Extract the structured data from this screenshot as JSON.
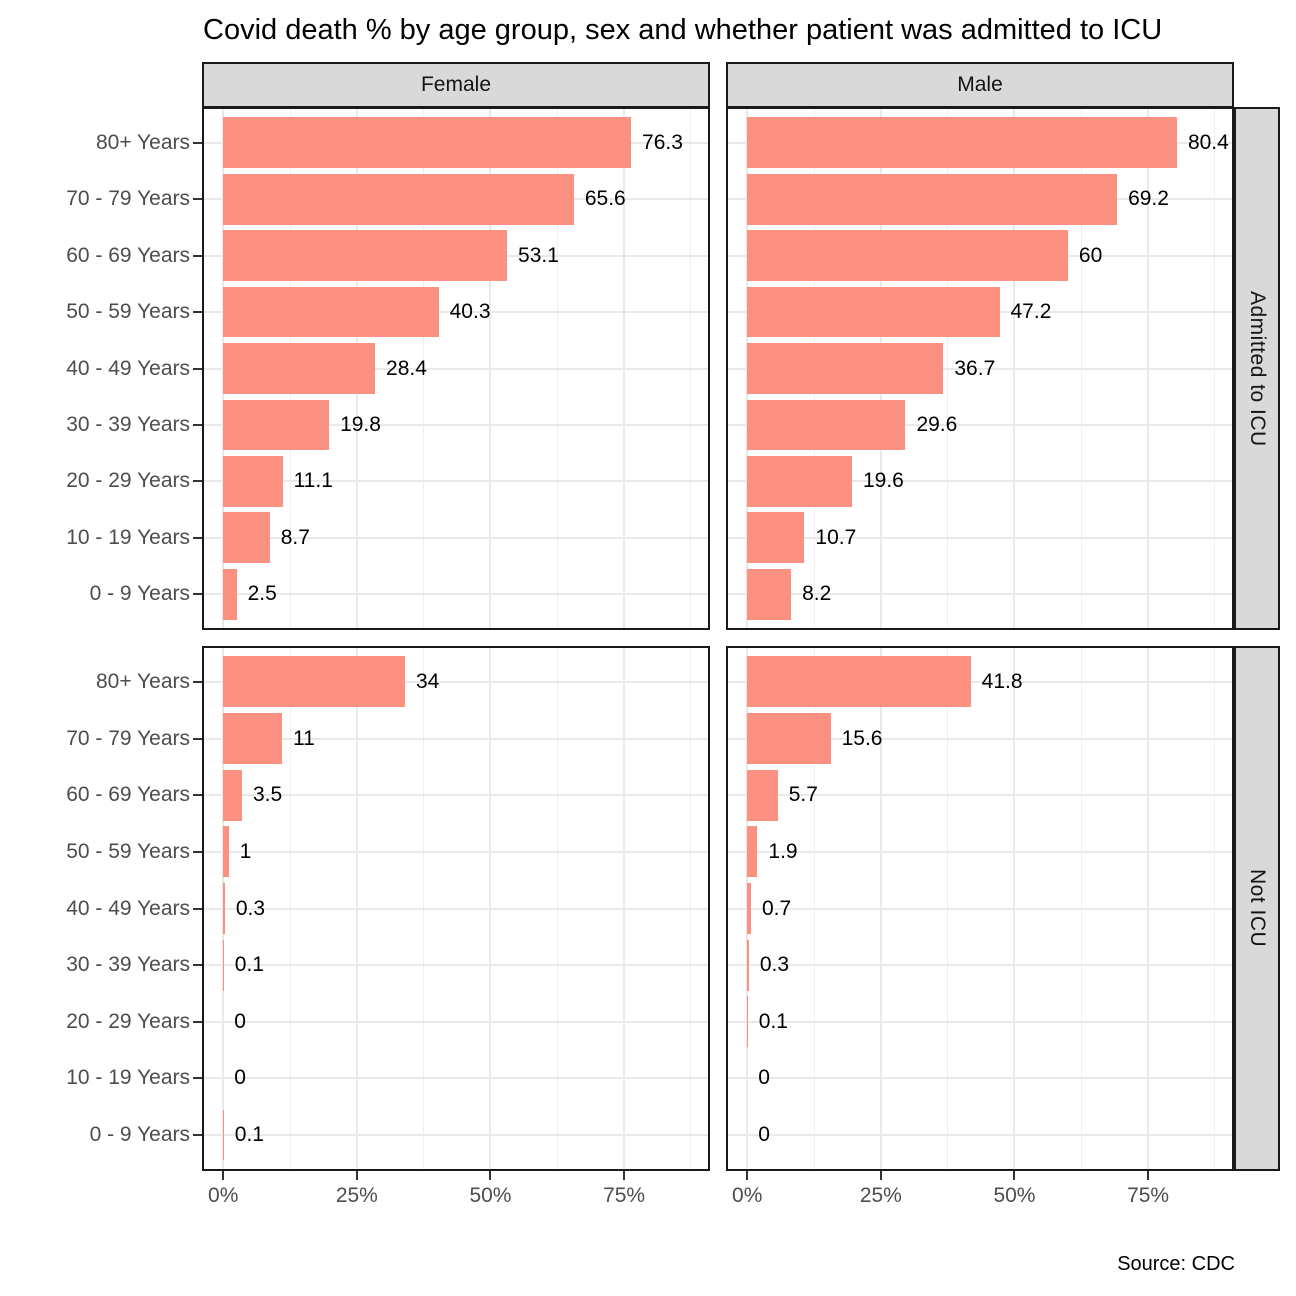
{
  "title": "Covid death % by age group, sex and whether patient was admitted to ICU",
  "caption": "Source: CDC",
  "facet_columns": [
    "Female",
    "Male"
  ],
  "facet_rows": [
    "Admitted to ICU",
    "Not ICU"
  ],
  "colors": {
    "bar_fill": "#FC9181",
    "strip_background": "#D9D9D9",
    "panel_border": "#1A1A1A",
    "gridline": "#E9E9E9",
    "axis_text": "#4D4D4D"
  },
  "chart_data": {
    "type": "bar",
    "orientation": "horizontal",
    "title": "Covid death % by age group, sex and whether patient was admitted to ICU",
    "caption": "Source: CDC",
    "facets": {
      "columns": [
        "Female",
        "Male"
      ],
      "rows": [
        "Admitted to ICU",
        "Not ICU"
      ]
    },
    "categories": [
      "80+ Years",
      "70 - 79 Years",
      "60 - 69 Years",
      "50 - 59 Years",
      "40 - 49 Years",
      "30 - 39 Years",
      "20 - 29 Years",
      "10 - 19 Years",
      "0 - 9 Years"
    ],
    "x_axis": {
      "tick_labels": [
        "0%",
        "25%",
        "50%",
        "75%"
      ],
      "tick_values": [
        0,
        25,
        50,
        75
      ],
      "minor_tick_values": [
        12.5,
        37.5,
        62.5,
        87.5
      ],
      "range": [
        -3.6,
        90.7
      ],
      "grid": true
    },
    "panels": [
      {
        "facet_column": "Female",
        "facet_row": "Admitted to ICU",
        "values": [
          76.3,
          65.6,
          53.1,
          40.3,
          28.4,
          19.8,
          11.1,
          8.7,
          2.5
        ],
        "labels": [
          "76.3",
          "65.6",
          "53.1",
          "40.3",
          "28.4",
          "19.8",
          "11.1",
          "8.7",
          "2.5"
        ]
      },
      {
        "facet_column": "Male",
        "facet_row": "Admitted to ICU",
        "values": [
          80.4,
          69.2,
          60,
          47.2,
          36.7,
          29.6,
          19.6,
          10.7,
          8.2
        ],
        "labels": [
          "80.4",
          "69.2",
          "60",
          "47.2",
          "36.7",
          "29.6",
          "19.6",
          "10.7",
          "8.2"
        ]
      },
      {
        "facet_column": "Female",
        "facet_row": "Not ICU",
        "values": [
          34,
          11,
          3.5,
          1,
          0.3,
          0.1,
          0,
          0,
          0.1
        ],
        "labels": [
          "34",
          "11",
          "3.5",
          "1",
          "0.3",
          "0.1",
          "0",
          "0",
          "0.1"
        ]
      },
      {
        "facet_column": "Male",
        "facet_row": "Not ICU",
        "values": [
          41.8,
          15.6,
          5.7,
          1.9,
          0.7,
          0.3,
          0.1,
          0,
          0
        ],
        "labels": [
          "41.8",
          "15.6",
          "5.7",
          "1.9",
          "0.7",
          "0.3",
          "0.1",
          "0",
          "0"
        ]
      }
    ]
  }
}
